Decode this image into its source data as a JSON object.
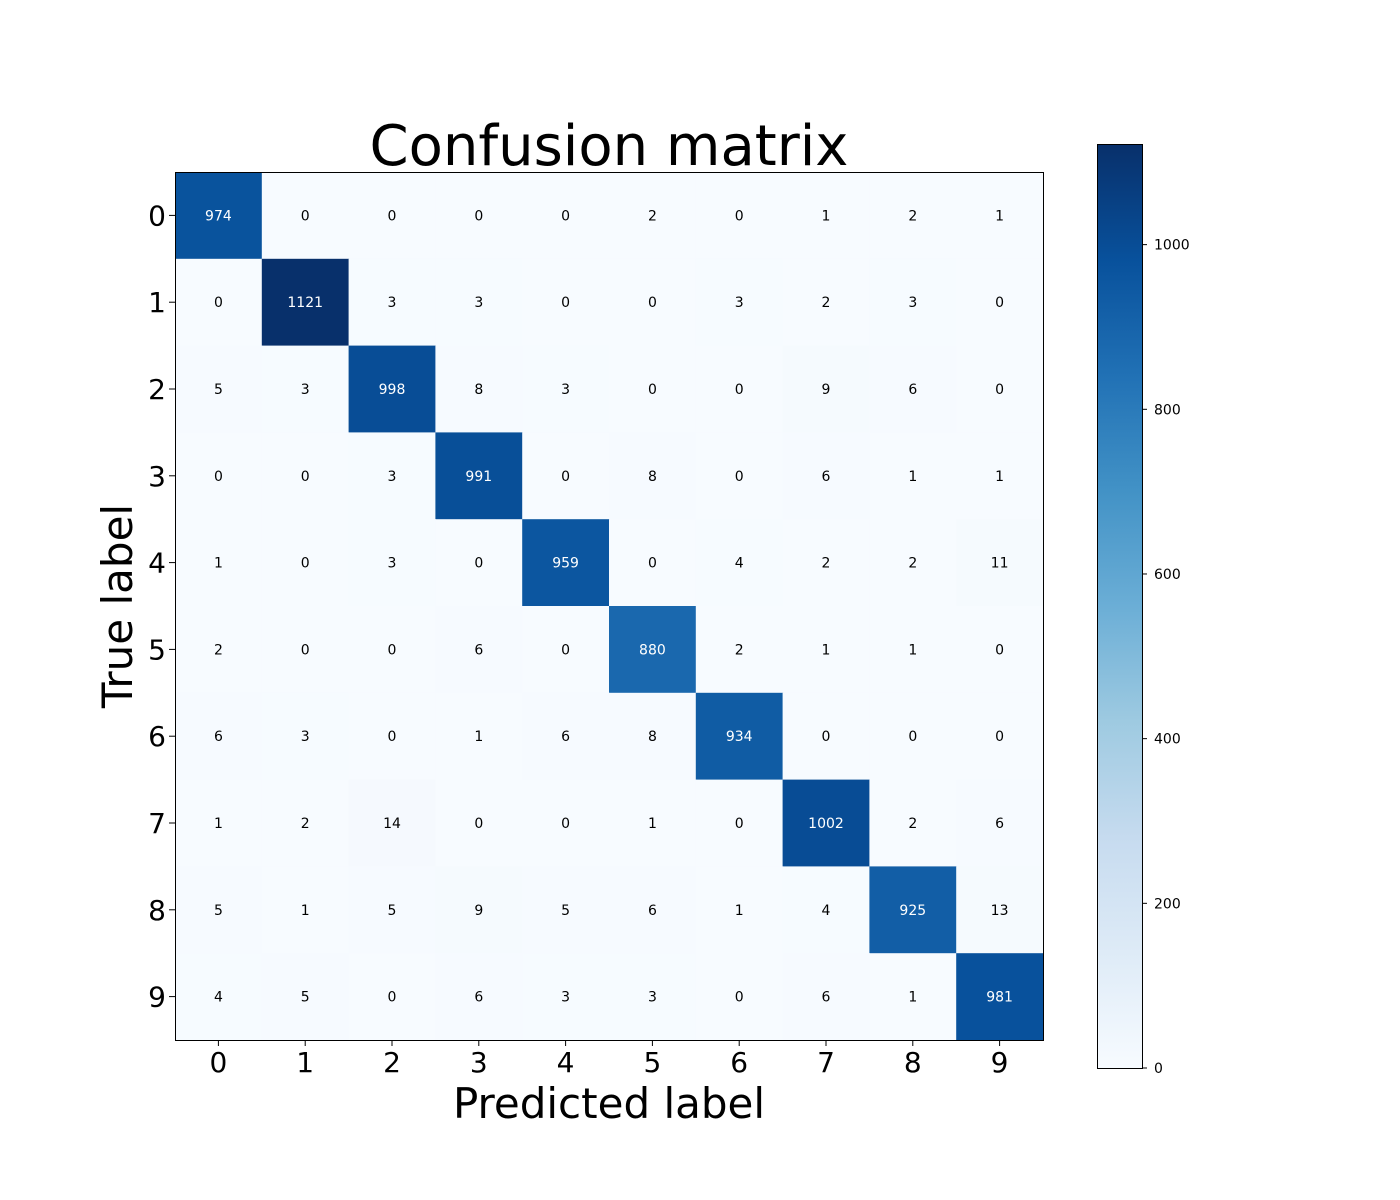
{
  "chart_data": {
    "type": "heatmap",
    "title": "Confusion matrix",
    "xlabel": "Predicted label",
    "ylabel": "True label",
    "x_categories": [
      "0",
      "1",
      "2",
      "3",
      "4",
      "5",
      "6",
      "7",
      "8",
      "9"
    ],
    "y_categories": [
      "0",
      "1",
      "2",
      "3",
      "4",
      "5",
      "6",
      "7",
      "8",
      "9"
    ],
    "matrix": [
      [
        974,
        0,
        0,
        0,
        0,
        2,
        0,
        1,
        2,
        1
      ],
      [
        0,
        1121,
        3,
        3,
        0,
        0,
        3,
        2,
        3,
        0
      ],
      [
        5,
        3,
        998,
        8,
        3,
        0,
        0,
        9,
        6,
        0
      ],
      [
        0,
        0,
        3,
        991,
        0,
        8,
        0,
        6,
        1,
        1
      ],
      [
        1,
        0,
        3,
        0,
        959,
        0,
        4,
        2,
        2,
        11
      ],
      [
        2,
        0,
        0,
        6,
        0,
        880,
        2,
        1,
        1,
        0
      ],
      [
        6,
        3,
        0,
        1,
        6,
        8,
        934,
        0,
        0,
        0
      ],
      [
        1,
        2,
        14,
        0,
        0,
        1,
        0,
        1002,
        2,
        6
      ],
      [
        5,
        1,
        5,
        9,
        5,
        6,
        1,
        4,
        925,
        13
      ],
      [
        4,
        5,
        0,
        6,
        3,
        3,
        0,
        6,
        1,
        981
      ]
    ],
    "colormap": "Blues",
    "colorbar": {
      "min": 0,
      "max": 1121,
      "ticks": [
        0,
        200,
        400,
        600,
        800,
        1000
      ],
      "tick_labels": [
        "0",
        "200",
        "400",
        "600",
        "800",
        "1000"
      ]
    },
    "text_threshold": 560.5,
    "colors": {
      "dark_text": "#000000",
      "light_text": "#ffffff",
      "frame": "#000000"
    }
  }
}
